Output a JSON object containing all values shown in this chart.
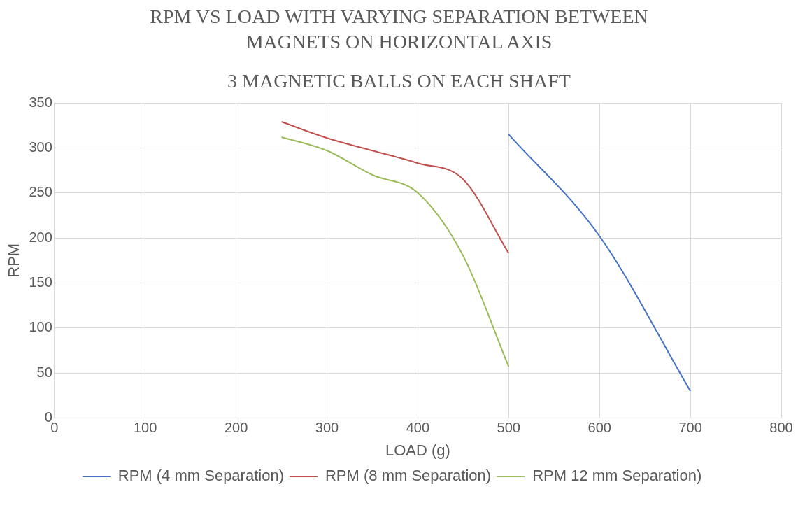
{
  "chart_data": {
    "type": "line",
    "title": "RPM VS LOAD  WITH VARYING SEPARATION BETWEEN MAGNETS ON HORIZONTAL AXIS",
    "subtitle": "3 MAGNETIC BALLS ON EACH SHAFT",
    "xlabel": "LOAD (g)",
    "ylabel": "RPM",
    "series": [
      {
        "name": "RPM (4 mm Separation)",
        "color": "#4472c4",
        "x": [
          500,
          600,
          700
        ],
        "values": [
          315,
          202,
          30
        ]
      },
      {
        "name": "RPM (8 mm Separation)",
        "color": "#c0504d",
        "x": [
          250,
          300,
          350,
          400,
          450,
          500
        ],
        "values": [
          329,
          311,
          297,
          283,
          265,
          183
        ]
      },
      {
        "name": "RPM 12 mm Separation)",
        "color": "#9bbb59",
        "x": [
          250,
          300,
          350,
          400,
          450,
          500
        ],
        "values": [
          312,
          297,
          270,
          250,
          180,
          57
        ]
      }
    ],
    "xlim": [
      0,
      800
    ],
    "xticks": [
      0,
      100,
      200,
      300,
      400,
      500,
      600,
      700,
      800
    ],
    "ylim": [
      0,
      350
    ],
    "yticks": [
      0,
      50,
      100,
      150,
      200,
      250,
      300,
      350
    ],
    "grid": true,
    "legend": "bottom",
    "marker": "none",
    "line_style": "solid"
  }
}
